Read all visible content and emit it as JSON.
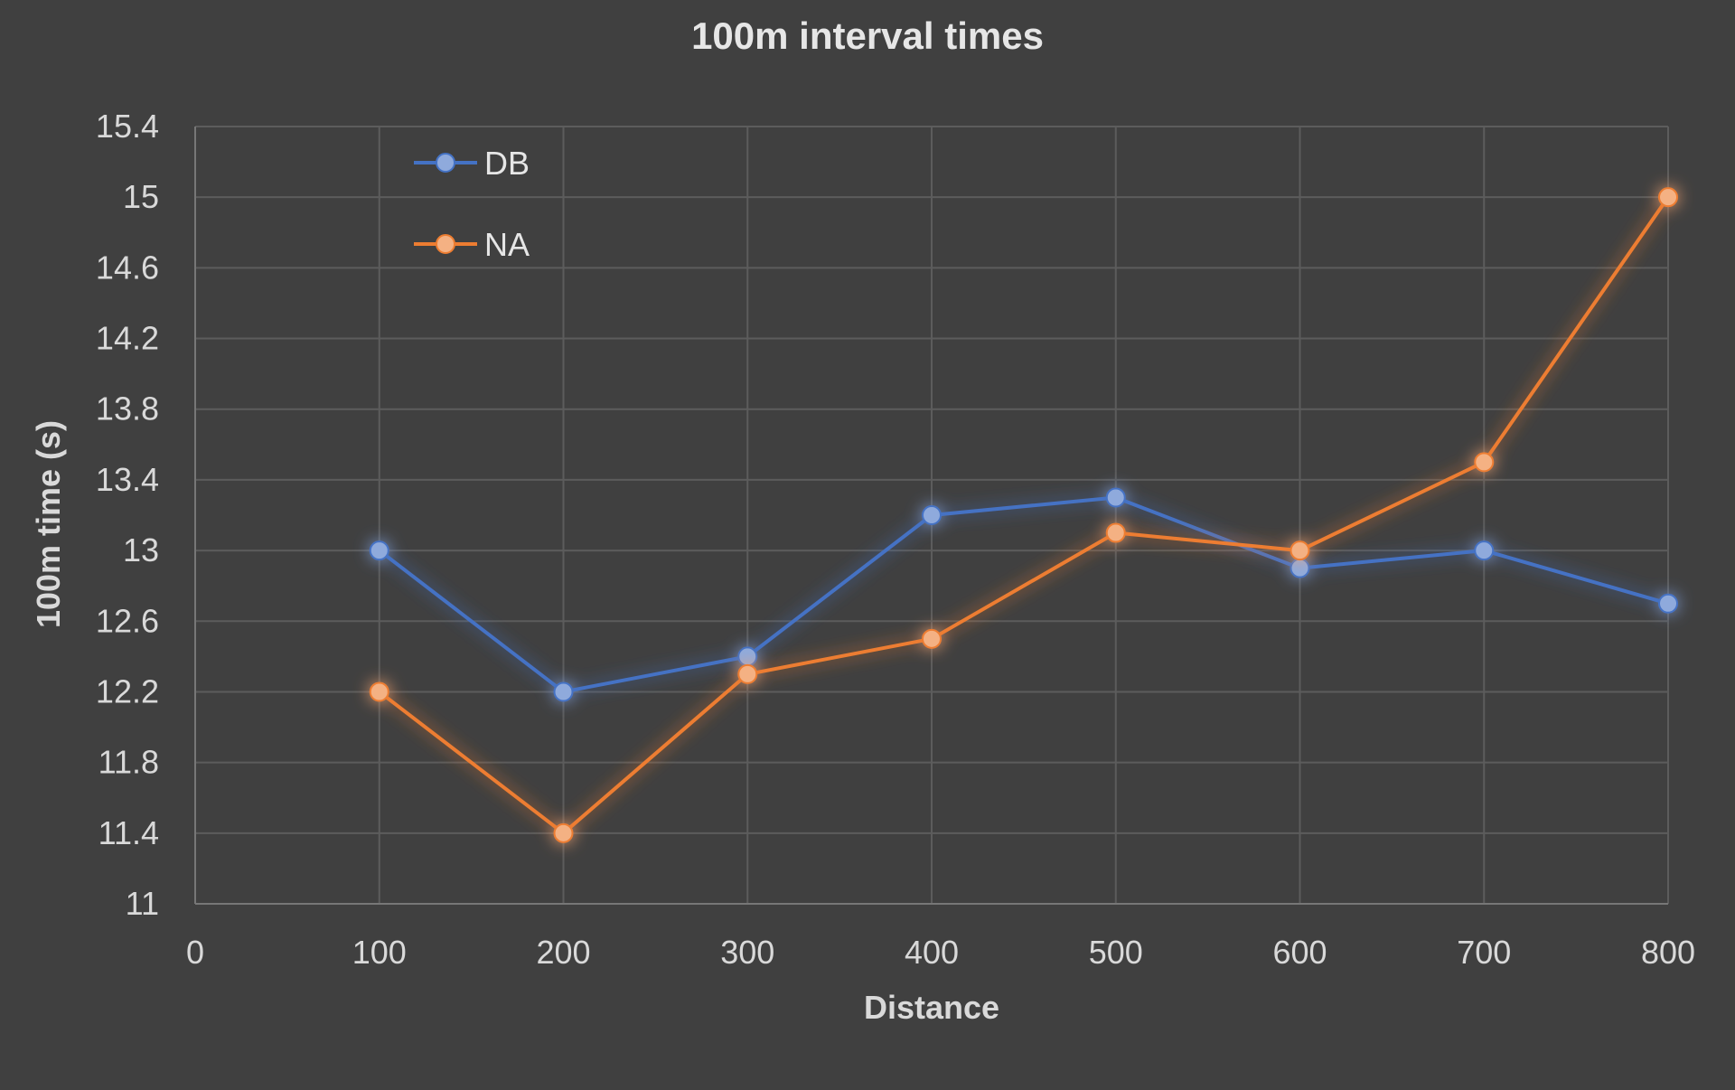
{
  "chart_data": {
    "type": "line",
    "title": "100m interval times",
    "xlabel": "Distance",
    "ylabel": "100m time (s)",
    "xlim": [
      0,
      800
    ],
    "ylim": [
      11,
      15.4
    ],
    "x_ticks": [
      "0",
      "100",
      "200",
      "300",
      "400",
      "500",
      "600",
      "700",
      "800"
    ],
    "y_ticks": [
      "11",
      "11.4",
      "11.8",
      "12.2",
      "12.6",
      "13",
      "13.4",
      "13.8",
      "14.2",
      "14.6",
      "15",
      "15.4"
    ],
    "grid": true,
    "legend_position": "top-left",
    "x": [
      100,
      200,
      300,
      400,
      500,
      600,
      700,
      800
    ],
    "series": [
      {
        "name": "DB",
        "color": "#4472C4",
        "marker_color": "#8FAADC",
        "values": [
          13.0,
          12.2,
          12.4,
          13.2,
          13.3,
          12.9,
          13.0,
          12.7
        ]
      },
      {
        "name": "NA",
        "color": "#ED7D31",
        "marker_color": "#F4B183",
        "values": [
          12.2,
          11.4,
          12.3,
          12.5,
          13.1,
          13.0,
          13.5,
          15.0
        ]
      }
    ]
  }
}
